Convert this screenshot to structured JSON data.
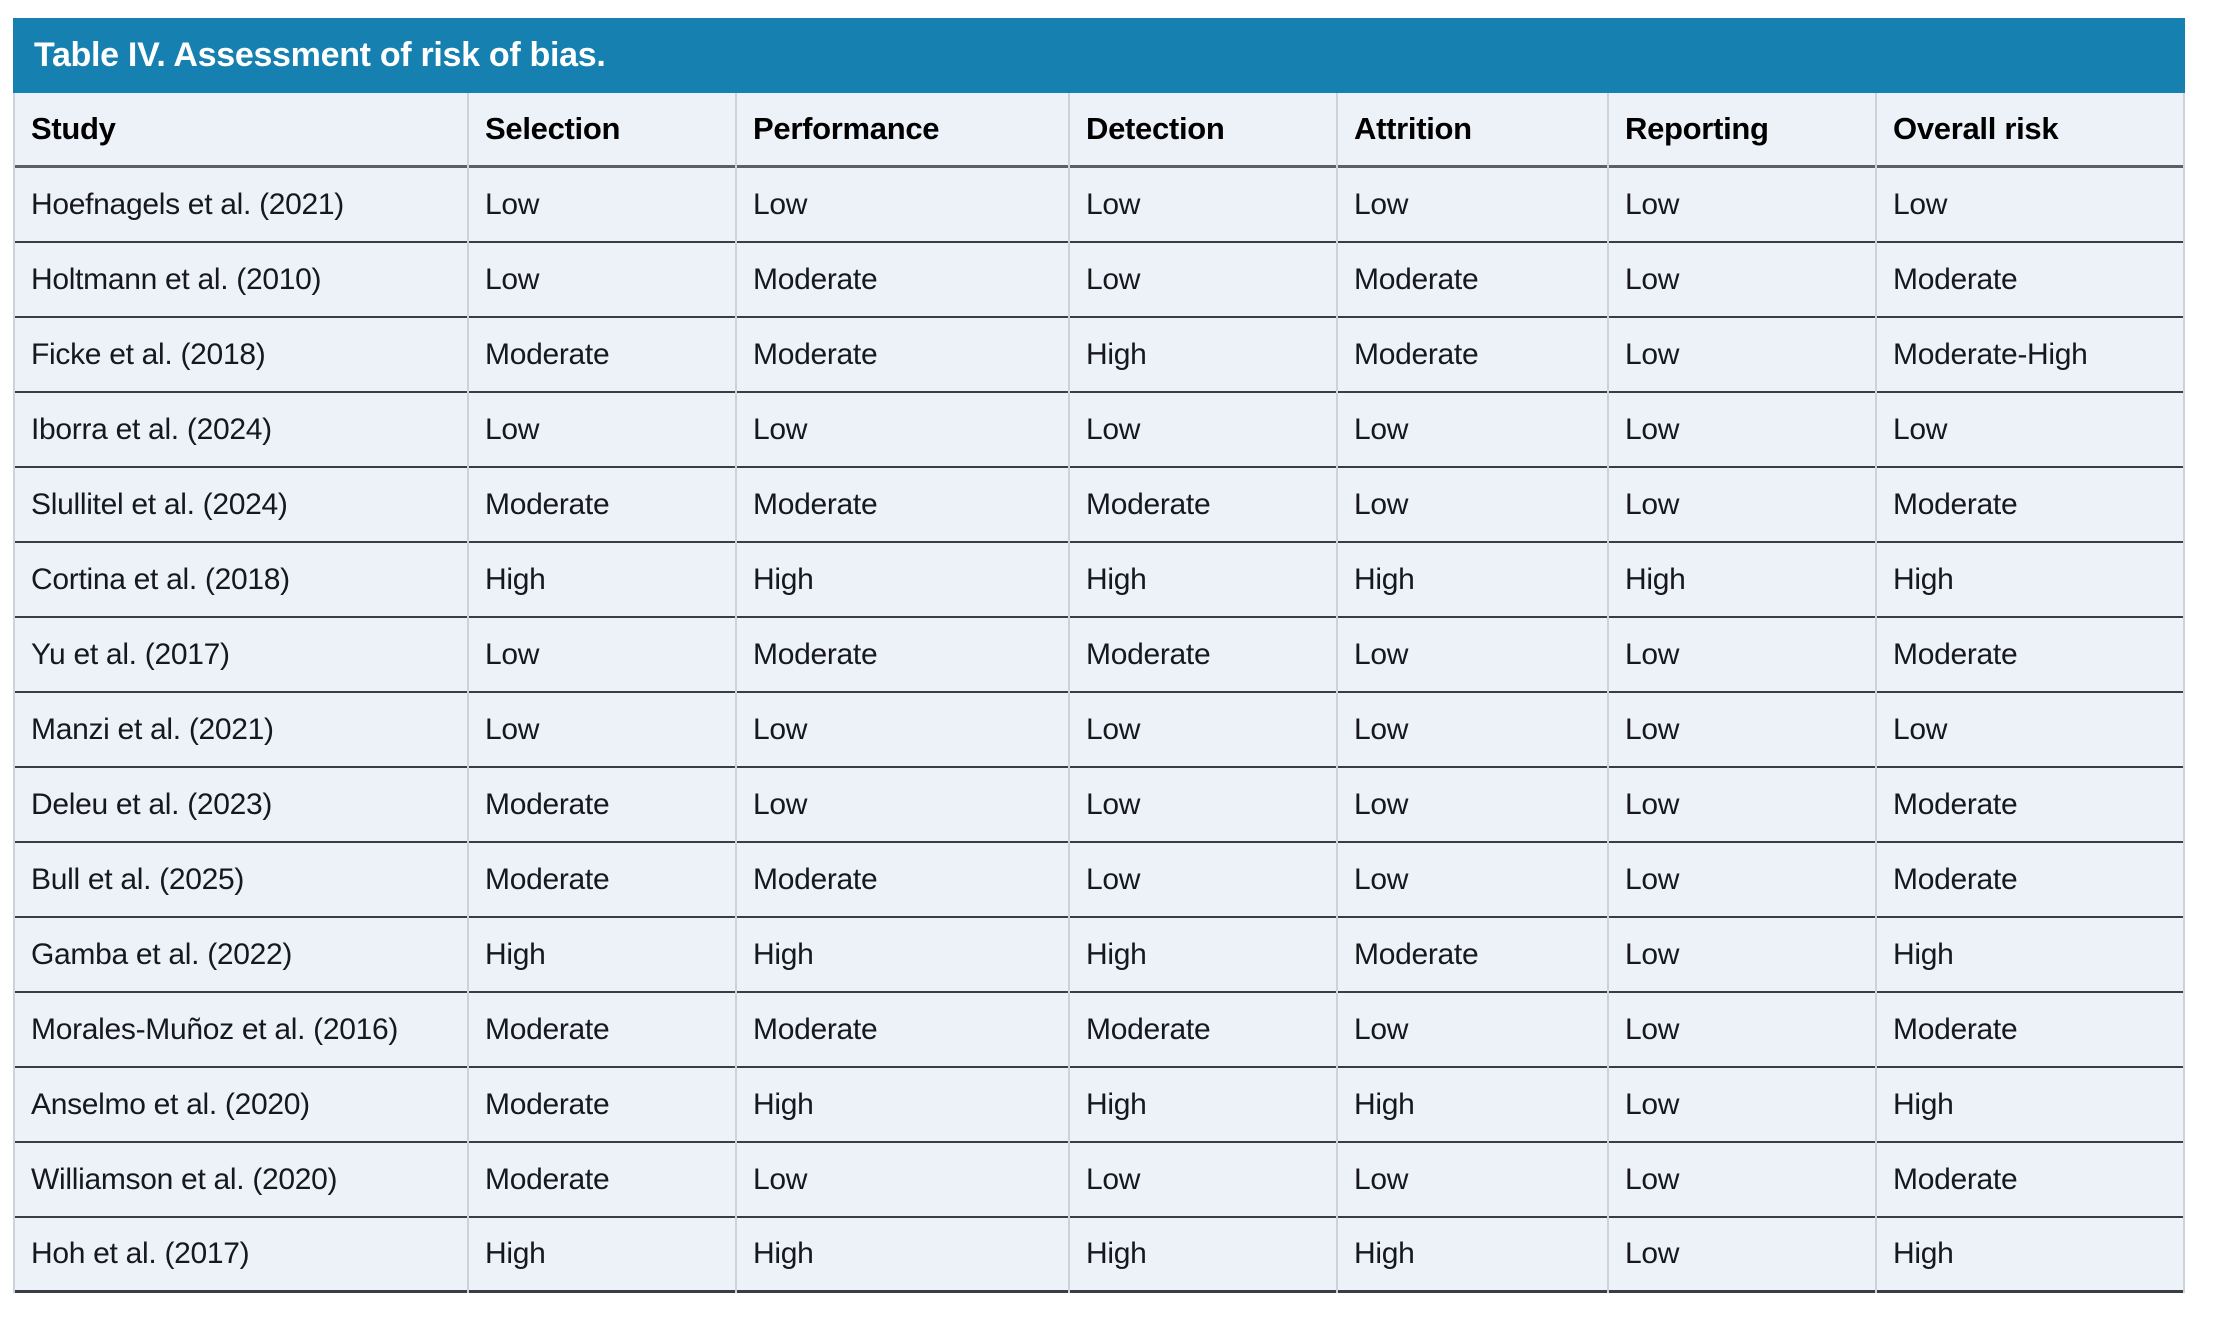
{
  "table": {
    "title": "Table IV. Assessment of risk of bias.",
    "columns": [
      "Study",
      "Selection",
      "Performance",
      "Detection",
      "Attrition",
      "Reporting",
      "Overall risk"
    ],
    "rows": [
      [
        "Hoefnagels et al. (2021)",
        "Low",
        "Low",
        "Low",
        "Low",
        "Low",
        "Low"
      ],
      [
        "Holtmann et al. (2010)",
        "Low",
        "Moderate",
        "Low",
        "Moderate",
        "Low",
        "Moderate"
      ],
      [
        "Ficke et al. (2018)",
        "Moderate",
        "Moderate",
        "High",
        "Moderate",
        "Low",
        "Moderate-High"
      ],
      [
        "Iborra et al. (2024)",
        "Low",
        "Low",
        "Low",
        "Low",
        "Low",
        "Low"
      ],
      [
        "Slullitel et al. (2024)",
        "Moderate",
        "Moderate",
        "Moderate",
        "Low",
        "Low",
        "Moderate"
      ],
      [
        "Cortina et al. (2018)",
        "High",
        "High",
        "High",
        "High",
        "High",
        "High"
      ],
      [
        "Yu et al. (2017)",
        "Low",
        "Moderate",
        "Moderate",
        "Low",
        "Low",
        "Moderate"
      ],
      [
        "Manzi et al. (2021)",
        "Low",
        "Low",
        "Low",
        "Low",
        "Low",
        "Low"
      ],
      [
        "Deleu et al. (2023)",
        "Moderate",
        "Low",
        "Low",
        "Low",
        "Low",
        "Moderate"
      ],
      [
        "Bull et al. (2025)",
        "Moderate",
        "Moderate",
        "Low",
        "Low",
        "Low",
        "Moderate"
      ],
      [
        "Gamba et al. (2022)",
        "High",
        "High",
        "High",
        "Moderate",
        "Low",
        "High"
      ],
      [
        "Morales-Muñoz et al. (2016)",
        "Moderate",
        "Moderate",
        "Moderate",
        "Low",
        "Low",
        "Moderate"
      ],
      [
        "Anselmo et al. (2020)",
        "Moderate",
        "High",
        "High",
        "High",
        "Low",
        "High"
      ],
      [
        "Williamson et al. (2020)",
        "Moderate",
        "Low",
        "Low",
        "Low",
        "Low",
        "Moderate"
      ],
      [
        "Hoh et al. (2017)",
        "High",
        "High",
        "High",
        "High",
        "Low",
        "High"
      ]
    ]
  },
  "colors": {
    "title_bar_bg": "#1681b1",
    "row_bg": "#edf1f8",
    "grid_gap": "#ccd1da",
    "separator": "#3a3d41",
    "header_separator": "#5c6065",
    "title_text": "#ffffff",
    "body_text": "#16181b",
    "header_text": "#000000"
  }
}
